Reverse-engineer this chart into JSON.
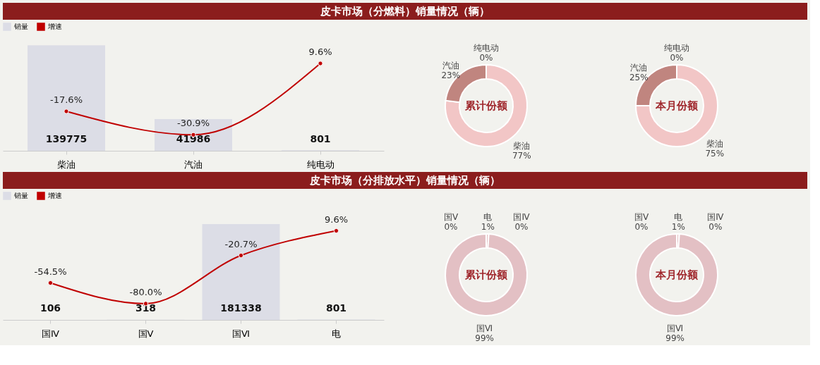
{
  "chart_data": [
    {
      "type": "bar",
      "title": "皮卡市场（分燃料）销量情况（辆）",
      "categories": [
        "柴油",
        "汽油",
        "纯电动"
      ],
      "legend": "top",
      "marker": "circle",
      "grid": false,
      "tick_labels": "x",
      "series": [
        {
          "name": "销量",
          "type": "bar",
          "color": "#dcdde6",
          "values": [
            139775,
            41986,
            801
          ],
          "value_labels": [
            "139775",
            "41986",
            "801"
          ]
        },
        {
          "name": "增速",
          "type": "line",
          "axis": "y2",
          "color": "#c00000",
          "values": [
            -17.6,
            -30.9,
            9.6
          ],
          "value_labels": [
            "-17.6%",
            "-30.9%",
            "9.6%"
          ]
        }
      ]
    },
    {
      "type": "donut",
      "categories": [
        "纯电动",
        "柴油",
        "汽油"
      ],
      "values": [
        0,
        77,
        23
      ],
      "colors": [
        "#c0857f",
        "#f2c6c6",
        "#c0857f"
      ],
      "value_labels": [
        "0%",
        "77%",
        "23%"
      ],
      "annotations": [
        "累计份额"
      ]
    },
    {
      "type": "donut",
      "categories": [
        "纯电动",
        "柴油",
        "汽油"
      ],
      "values": [
        0,
        75,
        25
      ],
      "colors": [
        "#c0857f",
        "#f2c6c6",
        "#c0857f"
      ],
      "value_labels": [
        "0%",
        "75%",
        "25%"
      ],
      "annotations": [
        "本月份额"
      ]
    },
    {
      "type": "bar",
      "title": "皮卡市场（分排放水平）销量情况（辆）",
      "categories": [
        "国Ⅳ",
        "国Ⅴ",
        "国Ⅵ",
        "电"
      ],
      "legend": "top",
      "marker": "circle",
      "grid": false,
      "tick_labels": "x",
      "series": [
        {
          "name": "销量",
          "type": "bar",
          "color": "#dcdde6",
          "values": [
            106,
            318,
            181338,
            801
          ],
          "value_labels": [
            "106",
            "318",
            "181338",
            "801"
          ]
        },
        {
          "name": "增速",
          "type": "line",
          "axis": "y2",
          "color": "#c00000",
          "values": [
            -54.5,
            -80.0,
            -20.7,
            9.6
          ],
          "value_labels": [
            "-54.5%",
            "-80.0%",
            "-20.7%",
            "9.6%"
          ]
        }
      ]
    },
    {
      "type": "donut",
      "categories": [
        "国Ⅴ",
        "电",
        "国Ⅵ",
        "国Ⅳ"
      ],
      "values": [
        0,
        1,
        99,
        0
      ],
      "colors": [
        "#e3c0c4",
        "#e3c0c4",
        "#e3c0c4",
        "#e3c0c4"
      ],
      "value_labels": [
        "0%",
        "1%",
        "99%",
        "0%"
      ],
      "annotations": [
        "累计份额"
      ]
    },
    {
      "type": "donut",
      "categories": [
        "国Ⅴ",
        "电",
        "国Ⅳ",
        "国Ⅵ"
      ],
      "values": [
        0,
        1,
        0,
        99
      ],
      "colors": [
        "#e3c0c4",
        "#e3c0c4",
        "#e3c0c4",
        "#e3c0c4"
      ],
      "value_labels": [
        "0%",
        "1%",
        "0%",
        "99%"
      ],
      "annotations": [
        "本月份额"
      ]
    }
  ]
}
